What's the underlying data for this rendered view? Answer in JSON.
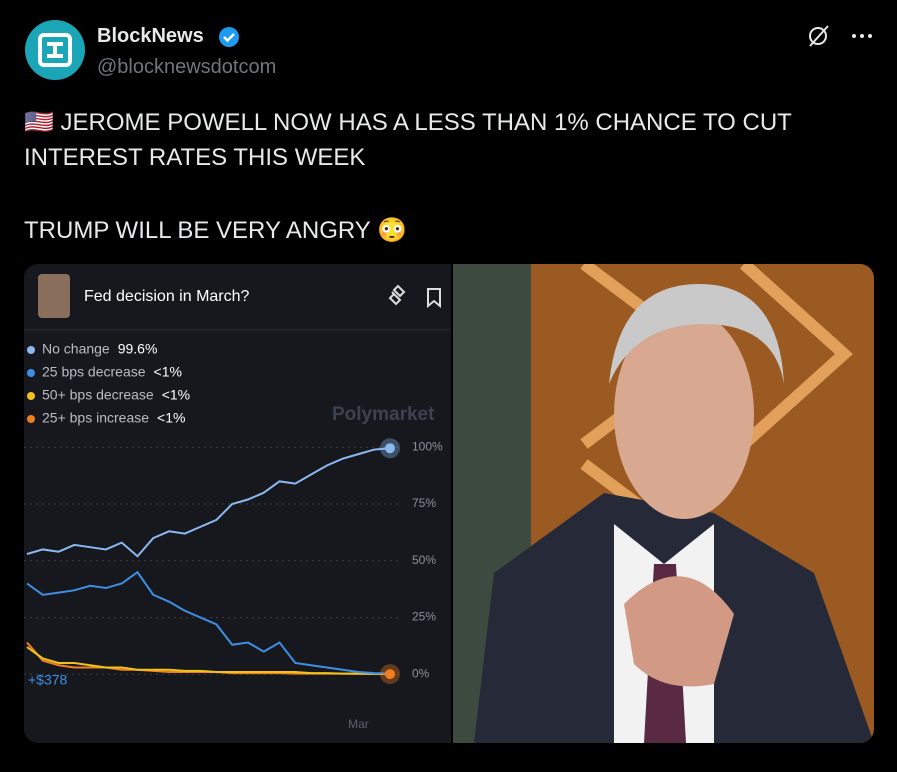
{
  "post": {
    "author": "BlockNews",
    "handle": "@blocknewsdotcom",
    "text_lines": [
      "🇺🇸 JEROME POWELL NOW HAS A LESS THAN 1% CHANCE TO CUT",
      "INTEREST RATES THIS WEEK",
      "TRUMP WILL BE VERY ANGRY 😳"
    ]
  },
  "chart_data": {
    "type": "line",
    "title": "Fed decision in March?",
    "watermark": "Polymarket",
    "annotation": "+$378",
    "categories": [
      null,
      null,
      null,
      null,
      null,
      null,
      null,
      null,
      null,
      null,
      null,
      null,
      null,
      null,
      null,
      null,
      null,
      null,
      null,
      null,
      null,
      "Mar",
      null,
      null
    ],
    "series": [
      {
        "name": "No change",
        "value_label": "99.6%",
        "color": "#8ab8ef",
        "values": [
          53,
          55,
          54,
          57,
          56,
          55,
          58,
          52,
          60,
          63,
          62,
          65,
          68,
          75,
          77,
          80,
          85,
          84,
          88,
          92,
          95,
          97,
          99,
          99.6
        ]
      },
      {
        "name": "25 bps decrease",
        "value_label": "<1%",
        "color": "#3d8fe4",
        "values": [
          40,
          35,
          36,
          37,
          39,
          38,
          40,
          45,
          35,
          32,
          28,
          25,
          22,
          13,
          14,
          10,
          14,
          5,
          4,
          3,
          2,
          1,
          0.5,
          0.4
        ]
      },
      {
        "name": "50+ bps decrease",
        "value_label": "<1%",
        "color": "#f2c21b",
        "values": [
          12,
          7,
          5,
          5,
          4,
          3,
          3,
          2,
          2,
          2,
          1.5,
          1.5,
          1,
          1,
          1,
          1,
          1,
          1,
          0.5,
          0.5,
          0.3,
          0.3,
          0.2,
          0.2
        ]
      },
      {
        "name": "25+ bps increase",
        "value_label": "<1%",
        "color": "#f0801f",
        "values": [
          14,
          6,
          4,
          3,
          3,
          3,
          2,
          2,
          1.5,
          1,
          1,
          1,
          1,
          0.5,
          0.5,
          0.5,
          0.5,
          0.3,
          0.3,
          0.3,
          0.3,
          0.2,
          0.2,
          0.1
        ]
      }
    ],
    "ylim": [
      -5,
      105
    ],
    "yticks": [
      {
        "value": 100,
        "label": "100%"
      },
      {
        "value": 75,
        "label": "75%"
      },
      {
        "value": 50,
        "label": "50%"
      },
      {
        "value": 25,
        "label": "25%"
      },
      {
        "value": 0,
        "label": "0%"
      }
    ],
    "grid": true
  }
}
